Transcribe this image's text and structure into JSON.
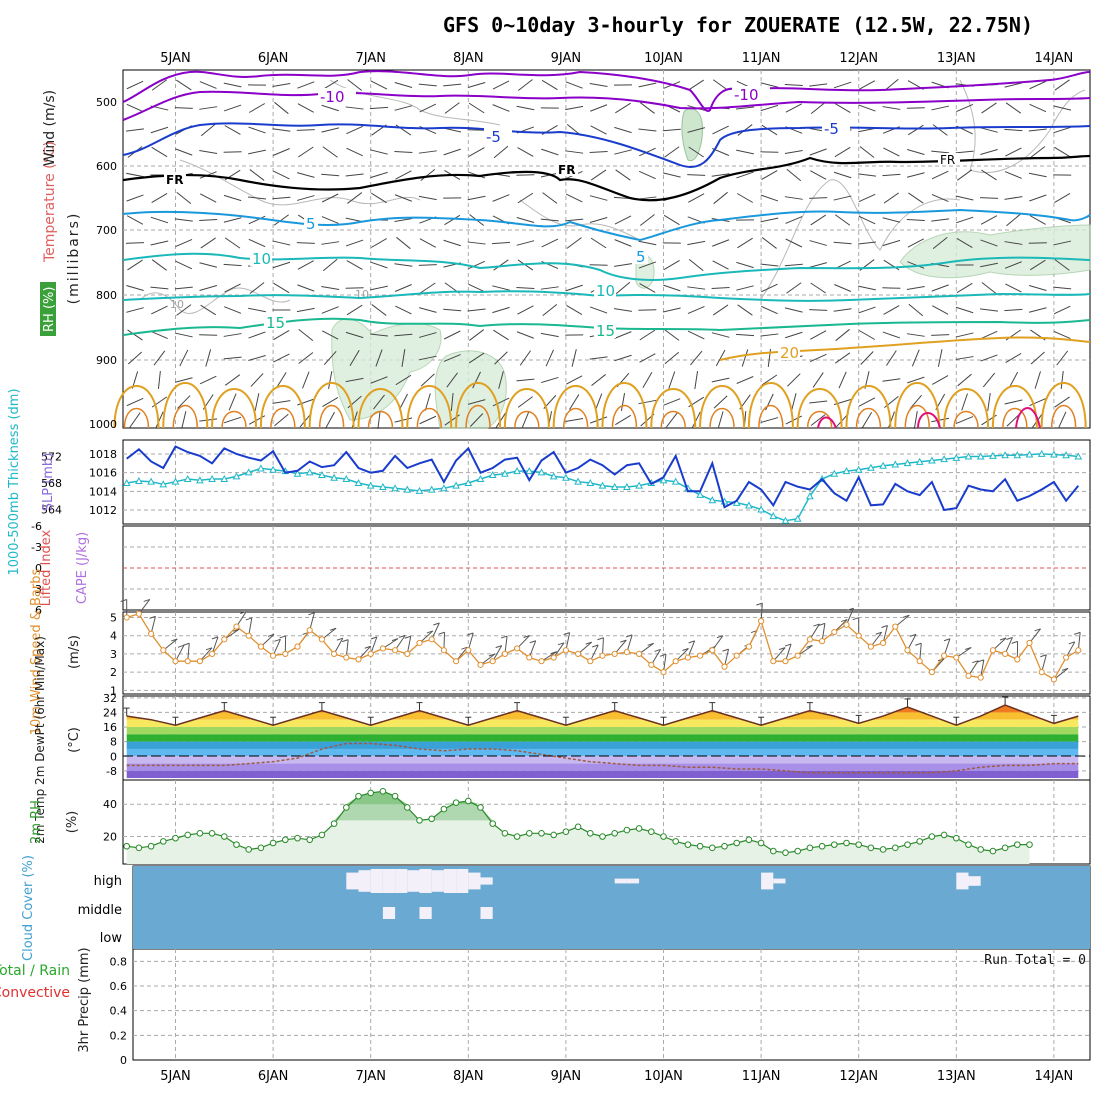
{
  "title": "GFS 0~10day 3-hourly for ZOUERATE (12.5W, 22.75N)",
  "days": [
    "5JAN",
    "6JAN",
    "7JAN",
    "8JAN",
    "9JAN",
    "10JAN",
    "11JAN",
    "12JAN",
    "13JAN",
    "14JAN"
  ],
  "colors": {
    "purple": "#8a00c8",
    "blue": "#1a3ccc",
    "sky": "#1a98dc",
    "teal": "#1ab8b8",
    "green_teal": "#1ab890",
    "orange": "#e0a020",
    "magenta": "#e0107a",
    "rh_green": "#7ac87a",
    "cloud_blue": "#6aaad2",
    "grid": "#aaaaaa"
  },
  "panels": {
    "upper_air": {
      "ylabel_wind": "Wind (m/s)",
      "ylabel_temp": "Temperature (°C)",
      "ylabel_rh": "RH (%)",
      "ylabel_units": "(millibars)",
      "levels": [
        "500",
        "600",
        "700",
        "800",
        "900",
        "1000"
      ],
      "contour_labels": [
        "-10",
        "-10",
        "-5",
        "-5",
        "FR",
        "FR",
        "FR",
        "5",
        "5",
        "10",
        "10",
        "10",
        "15",
        "15",
        "20",
        "10",
        "10"
      ]
    },
    "thickness": {
      "ylabel_left": "1000-500mb Thickness (dm)",
      "ylabel_right": "SLP (mb)",
      "left_ticks": [
        "572",
        "568",
        "564"
      ],
      "right_ticks": [
        "1018",
        "1016",
        "1014",
        "1012"
      ]
    },
    "stability": {
      "ylabel_left": "Lifted Index",
      "ylabel_right": "CAPE (J/kg)",
      "ticks": [
        "-6",
        "-3",
        "0",
        "3",
        "6"
      ]
    },
    "wind10": {
      "ylabel": "10m Wind Speed & Barbs",
      "units": "(m/s)",
      "ticks": [
        "5",
        "4",
        "3",
        "2",
        "1"
      ]
    },
    "temp2m": {
      "ylabel": "2m Temp 2m DewPt (6hr Min/Max)",
      "units": "(°C)",
      "ticks": [
        "32",
        "24",
        "16",
        "8",
        "0",
        "-8"
      ]
    },
    "rh2m": {
      "ylabel": "2m RH",
      "units": "(%)",
      "ticks": [
        "40",
        "20"
      ]
    },
    "cloud": {
      "ylabel": "Cloud Cover (%)",
      "levels": [
        "high",
        "middle",
        "low"
      ]
    },
    "precip": {
      "ylabel_a": "Total / Rain",
      "ylabel_b": "Convective",
      "ylabel_c": "3hr Precip (mm)",
      "ticks": [
        "0.8",
        "0.6",
        "0.4",
        "0.2",
        "0"
      ],
      "run_total": "Run Total = 0"
    }
  },
  "chart_data": [
    {
      "type": "line",
      "name": "slp",
      "ylabel": "SLP (mb)",
      "ylim": [
        1010.5,
        1019.5
      ],
      "x_start_day": 4.5,
      "step_hours": 3,
      "values": [
        1017.5,
        1018.5,
        1017.2,
        1016.5,
        1018.8,
        1018.2,
        1017.8,
        1017.0,
        1018.6,
        1018.0,
        1017.6,
        1017.3,
        1018.3,
        1016.0,
        1016.2,
        1017.2,
        1016.6,
        1016.8,
        1018.2,
        1016.5,
        1016.0,
        1016.2,
        1017.8,
        1016.5,
        1017.0,
        1017.4,
        1015.0,
        1017.3,
        1018.6,
        1016.0,
        1016.5,
        1017.4,
        1017.6,
        1015.2,
        1017.3,
        1018.2,
        1016.0,
        1016.5,
        1017.4,
        1016.8,
        1015.8,
        1016.8,
        1017.0,
        1014.8,
        1015.5,
        1017.8,
        1014.0,
        1014.0,
        1017.0,
        1012.3,
        1013.0,
        1015.0,
        1014.2,
        1012.5,
        1015.0,
        1014.5,
        1014.2,
        1015.3,
        1013.8,
        1013.0,
        1015.5,
        1012.5,
        1012.6,
        1014.8,
        1014.0,
        1013.6,
        1015.0,
        1012.0,
        1012.2,
        1014.6,
        1014.2,
        1014.0,
        1015.3,
        1013.0,
        1013.5,
        1014.2,
        1015.0,
        1013.0,
        1014.6,
        1015.6,
        1013.5,
        1014.2,
        1015.6,
        1015.2,
        1014.5,
        1017.0,
        1018.5,
        1016.5,
        1016.0,
        1016.2,
        1016.0,
        1015.8,
        1015.4,
        1015.4
      ]
    },
    {
      "type": "line",
      "name": "thickness",
      "ylabel": "1000-500mb Thickness (dm)",
      "ylim": [
        561.8,
        574.5
      ],
      "x_start_day": 4.5,
      "step_hours": 3,
      "values": [
        568.0,
        568.3,
        568.2,
        567.8,
        568.2,
        568.6,
        568.4,
        568.6,
        568.6,
        569.0,
        569.6,
        570.2,
        570.0,
        569.8,
        569.4,
        569.6,
        569.2,
        568.8,
        568.6,
        568.0,
        567.6,
        567.4,
        567.2,
        567.0,
        566.8,
        567.0,
        567.2,
        567.6,
        568.0,
        568.6,
        569.2,
        569.4,
        569.8,
        569.8,
        569.6,
        569.0,
        568.8,
        568.2,
        568.0,
        567.6,
        567.4,
        567.4,
        567.6,
        568.0,
        568.4,
        568.2,
        567.2,
        566.2,
        565.4,
        565.2,
        565.0,
        564.6,
        564.0,
        563.0,
        562.3,
        562.6,
        566.0,
        568.6,
        569.4,
        569.8,
        570.0,
        570.3,
        570.6,
        570.8,
        571.0,
        571.2,
        571.4,
        571.6,
        571.8,
        572.0,
        572.0,
        572.1,
        572.2,
        572.2,
        572.3,
        572.4,
        572.3,
        572.2,
        572.0,
        572.4,
        572.8,
        573.3,
        572.9,
        572.5,
        572.3,
        572.0,
        571.8,
        571.6,
        571.5,
        571.3,
        571.4,
        571.3,
        571.2,
        571.0
      ]
    },
    {
      "type": "line",
      "name": "wind10_speed",
      "ylabel": "10m Wind Speed (m/s)",
      "ylim": [
        0.8,
        5.3
      ],
      "x_start_day": 4.5,
      "step_hours": 3,
      "values": [
        5.0,
        5.2,
        4.1,
        3.2,
        2.6,
        2.6,
        2.6,
        3.0,
        3.8,
        4.5,
        4.0,
        3.4,
        2.9,
        3.0,
        3.4,
        4.3,
        3.8,
        3.0,
        2.8,
        2.7,
        3.0,
        3.3,
        3.2,
        3.0,
        3.6,
        3.8,
        3.2,
        2.6,
        3.2,
        2.4,
        2.6,
        3.0,
        3.3,
        2.8,
        2.6,
        2.8,
        3.2,
        3.0,
        2.6,
        2.9,
        3.0,
        3.1,
        3.0,
        2.4,
        2.0,
        2.6,
        2.8,
        2.9,
        3.2,
        2.3,
        2.9,
        3.4,
        4.8,
        2.6,
        2.6,
        2.9,
        3.8,
        3.7,
        4.2,
        4.6,
        4.0,
        3.4,
        3.6,
        4.5,
        3.2,
        2.6,
        2.0,
        2.9,
        2.8,
        1.8,
        1.7,
        3.2,
        3.0,
        2.7,
        3.6,
        2.0,
        1.6,
        2.8,
        3.2,
        3.8,
        2.4,
        2.6,
        2.3,
        3.0,
        2.6,
        2.3,
        1.8,
        1.0,
        2.2,
        3.0,
        3.2,
        3.0,
        3.1,
        3.2
      ]
    },
    {
      "type": "line",
      "name": "temp2m",
      "ylabel": "2m Temp (°C)",
      "ylim": [
        -13,
        33
      ],
      "x_start_day": 4.5,
      "step_hours": 6,
      "values": [
        22,
        20,
        17,
        21,
        25,
        21,
        17,
        21,
        25,
        21,
        17,
        21,
        25,
        21,
        17,
        21,
        25,
        21,
        17,
        21,
        25,
        21,
        17,
        21,
        25,
        21,
        17,
        21,
        25,
        22,
        18,
        22,
        27,
        22,
        17,
        22,
        28,
        23,
        18,
        22,
        28,
        22,
        18,
        22,
        26,
        21,
        20
      ]
    },
    {
      "type": "line",
      "name": "dewpt2m",
      "ylabel": "2m DewPt (°C)",
      "ylim": [
        -13,
        33
      ],
      "x_start_day": 4.5,
      "step_hours": 6,
      "values": [
        -5,
        -5,
        -5,
        -5,
        -5,
        -4,
        -3,
        -1,
        4,
        7,
        7,
        6,
        4,
        3,
        4,
        4,
        3,
        1,
        -1,
        -3,
        -4,
        -5,
        -5,
        -6,
        -6,
        -7,
        -7,
        -8,
        -9,
        -9,
        -9,
        -9,
        -9,
        -9,
        -8,
        -6,
        -5,
        -5,
        -4,
        -4,
        -5,
        -6,
        -7,
        -7,
        -7,
        -7,
        -7
      ]
    },
    {
      "type": "area",
      "name": "rh2m",
      "ylabel": "2m RH (%)",
      "ylim": [
        3,
        55
      ],
      "x_start_day": 4.5,
      "step_hours": 3,
      "values": [
        14,
        13,
        14,
        17,
        19,
        21,
        22,
        22,
        20,
        15,
        12,
        13,
        16,
        18,
        19,
        18,
        21,
        28,
        38,
        45,
        47,
        48,
        45,
        38,
        30,
        31,
        37,
        41,
        42,
        38,
        28,
        22,
        20,
        22,
        22,
        21,
        23,
        26,
        22,
        20,
        22,
        24,
        25,
        23,
        20,
        17,
        15,
        14,
        13,
        14,
        16,
        18,
        16,
        11,
        10,
        11,
        13,
        14,
        15,
        16,
        15,
        13,
        12,
        13,
        15,
        17,
        20,
        21,
        19,
        15,
        12,
        11,
        13,
        15,
        15
      ]
    },
    {
      "type": "bar",
      "name": "cloud_cover",
      "ylabel": "Cloud Cover (%)",
      "categories": [
        "high",
        "middle",
        "low"
      ],
      "x_start_day": 4.5,
      "step_hours": 3,
      "high": [
        0,
        0,
        0,
        0,
        0,
        0,
        0,
        0,
        0,
        0,
        0,
        0,
        0,
        0,
        0,
        0,
        0,
        0,
        70,
        90,
        100,
        100,
        100,
        90,
        100,
        90,
        100,
        100,
        70,
        30,
        0,
        0,
        0,
        0,
        0,
        0,
        0,
        0,
        0,
        0,
        20,
        20,
        0,
        0,
        0,
        0,
        0,
        0,
        0,
        0,
        0,
        0,
        70,
        20,
        0,
        0,
        0,
        0,
        0,
        0,
        0,
        0,
        0,
        0,
        0,
        0,
        0,
        0,
        70,
        40,
        0,
        0,
        0,
        0,
        0,
        0,
        0,
        0,
        0,
        0,
        0,
        0,
        0,
        0,
        0,
        0,
        0,
        0,
        0,
        0,
        20,
        0,
        0,
        0
      ],
      "middle": [
        0,
        0,
        0,
        0,
        0,
        0,
        0,
        0,
        0,
        0,
        0,
        0,
        0,
        0,
        0,
        0,
        0,
        0,
        0,
        0,
        0,
        70,
        0,
        0,
        70,
        0,
        0,
        0,
        0,
        70,
        0,
        0,
        0,
        0,
        0,
        0,
        0,
        0,
        0,
        0,
        0,
        0,
        0,
        0,
        0,
        0,
        0,
        0,
        0,
        0,
        0,
        0,
        0,
        0,
        0,
        0,
        0,
        0,
        0,
        0,
        0,
        0,
        0,
        0,
        0,
        0,
        0,
        0,
        0,
        0,
        0,
        0,
        0,
        0,
        0,
        0,
        0,
        0,
        0,
        0,
        0,
        0,
        0,
        0,
        0,
        0,
        0,
        0,
        0,
        0,
        0,
        0,
        0,
        0
      ],
      "low": [
        0
      ]
    },
    {
      "type": "bar",
      "name": "precip_3hr",
      "ylabel": "3hr Precip (mm)",
      "ylim": [
        0,
        0.9
      ],
      "values": [
        0
      ]
    }
  ]
}
